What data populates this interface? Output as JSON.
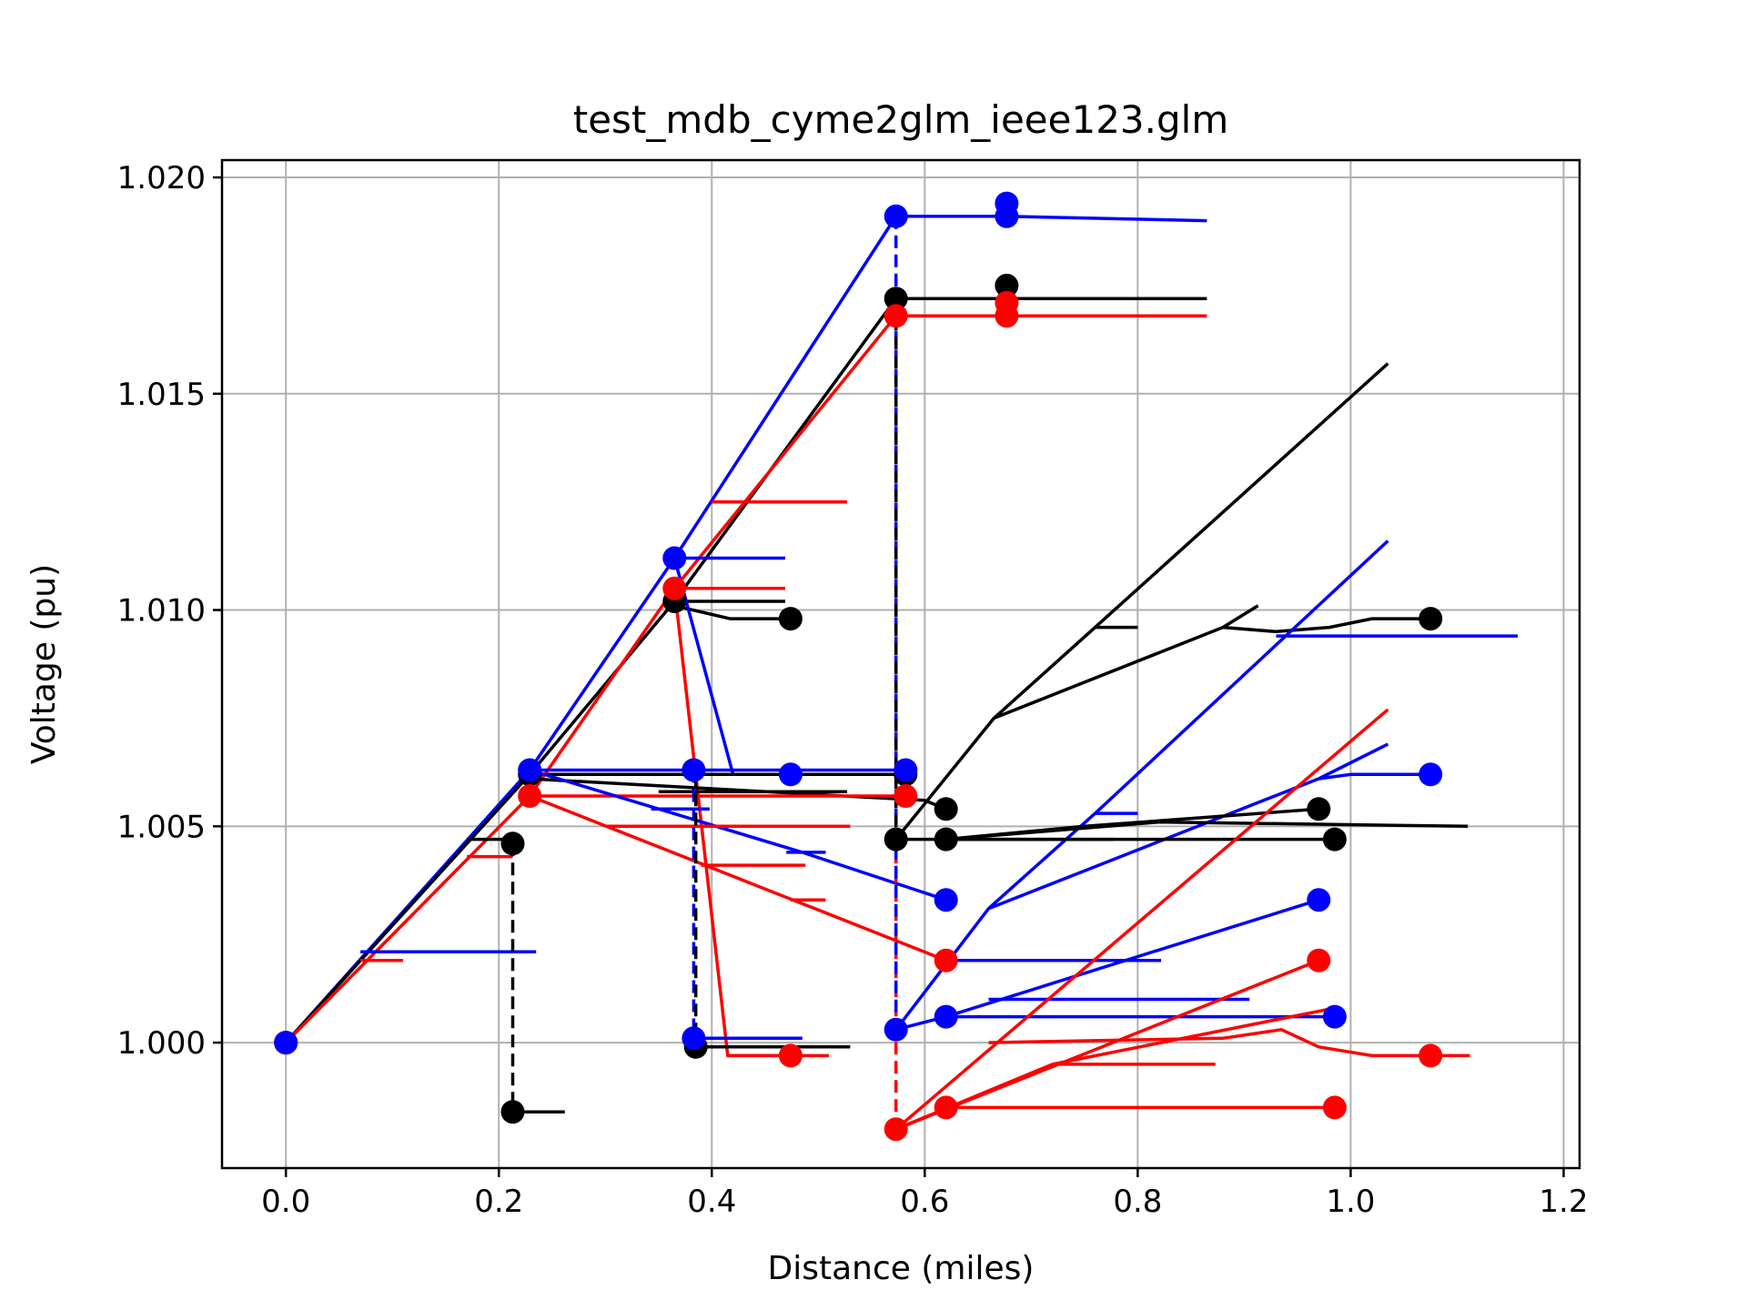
{
  "chart_data": {
    "type": "line",
    "title": "test_mdb_cyme2glm_ieee123.glm",
    "xlabel": "Distance (miles)",
    "ylabel": "Voltage (pu)",
    "xlim": [
      -0.06,
      1.215
    ],
    "ylim": [
      0.9971,
      1.0204
    ],
    "xticks": [
      "0.0",
      "0.2",
      "0.4",
      "0.6",
      "0.8",
      "1.0",
      "1.2"
    ],
    "xtick_values": [
      0.0,
      0.2,
      0.4,
      0.6,
      0.8,
      1.0,
      1.2
    ],
    "yticks": [
      "1.000",
      "1.005",
      "1.010",
      "1.015",
      "1.020"
    ],
    "ytick_values": [
      1.0,
      1.005,
      1.01,
      1.015,
      1.02
    ],
    "grid": true,
    "colors": {
      "phase_a": "#000000",
      "phase_b": "#0000ff",
      "phase_c": "#ff0000"
    },
    "series": [
      {
        "color": "#0000ff",
        "values": [
          [
            0.0,
            1.0
          ],
          [
            0.229,
            1.0063
          ],
          [
            0.365,
            1.0112
          ],
          [
            0.573,
            1.0191
          ]
        ]
      },
      {
        "color": "#000000",
        "values": [
          [
            0.0,
            1.0
          ],
          [
            0.229,
            1.0062
          ],
          [
            0.365,
            1.0102
          ],
          [
            0.573,
            1.0172
          ]
        ]
      },
      {
        "color": "#ff0000",
        "values": [
          [
            0.0,
            1.0
          ],
          [
            0.229,
            1.0057
          ],
          [
            0.365,
            1.0105
          ],
          [
            0.573,
            1.0168
          ]
        ]
      },
      {
        "color": "#0000ff",
        "values": [
          [
            0.573,
            1.0191
          ],
          [
            0.677,
            1.0191
          ],
          [
            0.865,
            1.019
          ]
        ]
      },
      {
        "color": "#000000",
        "values": [
          [
            0.573,
            1.0172
          ],
          [
            0.677,
            1.0172
          ],
          [
            0.865,
            1.0172
          ]
        ]
      },
      {
        "color": "#ff0000",
        "values": [
          [
            0.573,
            1.0168
          ],
          [
            0.677,
            1.0168
          ],
          [
            0.865,
            1.0168
          ]
        ]
      },
      {
        "color": "#ff0000",
        "values": [
          [
            0.4,
            1.0125
          ],
          [
            0.527,
            1.0125
          ]
        ]
      },
      {
        "color": "#0000ff",
        "values": [
          [
            0.365,
            1.0112
          ],
          [
            0.469,
            1.0112
          ]
        ]
      },
      {
        "color": "#000000",
        "values": [
          [
            0.365,
            1.0102
          ],
          [
            0.469,
            1.0102
          ]
        ]
      },
      {
        "color": "#ff0000",
        "values": [
          [
            0.365,
            1.0105
          ],
          [
            0.469,
            1.0105
          ]
        ]
      },
      {
        "color": "#000000",
        "values": [
          [
            0.365,
            1.0101
          ],
          [
            0.417,
            1.0098
          ],
          [
            0.474,
            1.0098
          ]
        ]
      },
      {
        "color": "#0000ff",
        "values": [
          [
            0.365,
            1.0112
          ],
          [
            0.42,
            1.0062
          ]
        ]
      },
      {
        "color": "#ff0000",
        "values": [
          [
            0.365,
            1.0105
          ],
          [
            0.415,
            0.9997
          ],
          [
            0.474,
            0.9997
          ]
        ]
      },
      {
        "color": "#ff0000",
        "values": [
          [
            0.415,
            0.9997
          ],
          [
            0.51,
            0.9997
          ]
        ]
      },
      {
        "color": "#0000ff",
        "values": [
          [
            0.229,
            1.0063
          ],
          [
            0.573,
            1.0063
          ],
          [
            0.582,
            1.0063
          ]
        ]
      },
      {
        "color": "#000000",
        "values": [
          [
            0.229,
            1.0062
          ],
          [
            0.582,
            1.0062
          ]
        ]
      },
      {
        "color": "#000000",
        "values": [
          [
            0.229,
            1.0061
          ],
          [
            0.6,
            1.0056
          ],
          [
            0.62,
            1.0054
          ]
        ]
      },
      {
        "color": "#ff0000",
        "values": [
          [
            0.229,
            1.0057
          ],
          [
            0.582,
            1.0057
          ]
        ]
      },
      {
        "color": "#000000",
        "values": [
          [
            0.35,
            1.0058
          ],
          [
            0.527,
            1.0058
          ]
        ]
      },
      {
        "color": "#0000ff",
        "values": [
          [
            0.229,
            1.0063
          ],
          [
            0.485,
            1.0044
          ],
          [
            0.62,
            1.0033
          ]
        ]
      },
      {
        "color": "#ff0000",
        "values": [
          [
            0.229,
            1.0057
          ],
          [
            0.62,
            1.0019
          ]
        ]
      },
      {
        "color": "#0000ff",
        "values": [
          [
            0.343,
            1.0054
          ],
          [
            0.398,
            1.0054
          ]
        ]
      },
      {
        "color": "#ff0000",
        "values": [
          [
            0.3,
            1.005
          ],
          [
            0.53,
            1.005
          ]
        ]
      },
      {
        "color": "#0000ff",
        "values": [
          [
            0.47,
            1.0044
          ],
          [
            0.507,
            1.0044
          ]
        ]
      },
      {
        "color": "#ff0000",
        "values": [
          [
            0.39,
            1.0041
          ],
          [
            0.488,
            1.0041
          ]
        ]
      },
      {
        "color": "#ff0000",
        "values": [
          [
            0.474,
            1.0033
          ],
          [
            0.507,
            1.0033
          ]
        ]
      },
      {
        "color": "#0000ff",
        "values": [
          [
            0.07,
            1.0021
          ],
          [
            0.235,
            1.0021
          ]
        ]
      },
      {
        "color": "#ff0000",
        "values": [
          [
            0.07,
            1.0019
          ],
          [
            0.11,
            1.0019
          ]
        ]
      },
      {
        "color": "#000000",
        "values": [
          [
            0.17,
            1.0047
          ],
          [
            0.213,
            1.0047
          ]
        ]
      },
      {
        "color": "#ff0000",
        "values": [
          [
            0.17,
            1.0043
          ],
          [
            0.213,
            1.0043
          ]
        ]
      },
      {
        "color": "#000000",
        "values": [
          [
            0.213,
            0.9984
          ],
          [
            0.262,
            0.9984
          ]
        ]
      },
      {
        "color": "#0000ff",
        "values": [
          [
            0.383,
            1.0001
          ],
          [
            0.485,
            1.0001
          ]
        ]
      },
      {
        "color": "#000000",
        "values": [
          [
            0.383,
            0.9999
          ],
          [
            0.53,
            0.9999
          ]
        ]
      },
      {
        "color": "#000000",
        "values": [
          [
            0.573,
            1.0047
          ],
          [
            0.665,
            1.0075
          ],
          [
            0.76,
            1.0096
          ],
          [
            1.035,
            1.0157
          ]
        ]
      },
      {
        "color": "#000000",
        "values": [
          [
            0.76,
            1.0096
          ],
          [
            0.8,
            1.0096
          ]
        ]
      },
      {
        "color": "#000000",
        "values": [
          [
            0.665,
            1.0075
          ],
          [
            0.88,
            1.0096
          ],
          [
            0.913,
            1.0101
          ]
        ]
      },
      {
        "color": "#000000",
        "values": [
          [
            0.88,
            1.0096
          ],
          [
            0.93,
            1.0095
          ],
          [
            0.98,
            1.0096
          ],
          [
            1.02,
            1.0098
          ],
          [
            1.075,
            1.0098
          ]
        ]
      },
      {
        "color": "#0000ff",
        "values": [
          [
            0.93,
            1.0094
          ],
          [
            1.157,
            1.0094
          ]
        ]
      },
      {
        "color": "#0000ff",
        "values": [
          [
            0.573,
            1.0003
          ],
          [
            0.66,
            1.0031
          ],
          [
            0.76,
            1.0053
          ],
          [
            1.035,
            1.0116
          ]
        ]
      },
      {
        "color": "#0000ff",
        "values": [
          [
            0.76,
            1.0053
          ],
          [
            0.8,
            1.0053
          ]
        ]
      },
      {
        "color": "#0000ff",
        "values": [
          [
            0.66,
            1.0031
          ],
          [
            0.97,
            1.0061
          ],
          [
            1.035,
            1.0069
          ]
        ]
      },
      {
        "color": "#0000ff",
        "values": [
          [
            0.97,
            1.0061
          ],
          [
            1.0,
            1.0062
          ],
          [
            1.075,
            1.0062
          ]
        ]
      },
      {
        "color": "#000000",
        "values": [
          [
            0.573,
            1.0047
          ],
          [
            0.62,
            1.0047
          ],
          [
            0.985,
            1.0047
          ]
        ]
      },
      {
        "color": "#000000",
        "values": [
          [
            0.62,
            1.0047
          ],
          [
            0.778,
            1.0047
          ]
        ]
      },
      {
        "color": "#000000",
        "values": [
          [
            0.62,
            1.0047
          ],
          [
            0.82,
            1.0051
          ],
          [
            1.11,
            1.005
          ]
        ]
      },
      {
        "color": "#000000",
        "values": [
          [
            0.62,
            1.0047
          ],
          [
            0.75,
            1.005
          ],
          [
            0.97,
            1.0054
          ]
        ]
      },
      {
        "color": "#0000ff",
        "values": [
          [
            0.573,
            1.0003
          ],
          [
            0.62,
            1.0006
          ],
          [
            0.97,
            1.0033
          ]
        ]
      },
      {
        "color": "#0000ff",
        "values": [
          [
            0.62,
            1.0019
          ],
          [
            0.822,
            1.0019
          ]
        ]
      },
      {
        "color": "#0000ff",
        "values": [
          [
            0.62,
            1.0006
          ],
          [
            0.985,
            1.0006
          ]
        ]
      },
      {
        "color": "#0000ff",
        "values": [
          [
            0.66,
            1.001
          ],
          [
            0.905,
            1.001
          ]
        ]
      },
      {
        "color": "#ff0000",
        "values": [
          [
            0.573,
            0.998
          ],
          [
            1.035,
            1.0077
          ]
        ]
      },
      {
        "color": "#ff0000",
        "values": [
          [
            0.573,
            0.998
          ],
          [
            0.97,
            1.0019
          ]
        ]
      },
      {
        "color": "#ff0000",
        "values": [
          [
            0.573,
            0.998
          ],
          [
            0.72,
            0.9995
          ],
          [
            0.985,
            1.0008
          ]
        ]
      },
      {
        "color": "#ff0000",
        "values": [
          [
            0.62,
            0.9985
          ],
          [
            0.985,
            0.9985
          ]
        ]
      },
      {
        "color": "#ff0000",
        "values": [
          [
            0.66,
            1.0
          ],
          [
            0.88,
            1.0001
          ],
          [
            0.935,
            1.0003
          ],
          [
            0.97,
            0.9999
          ],
          [
            1.02,
            0.9997
          ],
          [
            1.112,
            0.9997
          ]
        ]
      },
      {
        "color": "#ff0000",
        "values": [
          [
            0.72,
            0.9995
          ],
          [
            0.873,
            0.9995
          ]
        ]
      },
      {
        "color": "#ff0000",
        "values": [
          [
            0.573,
            1.0057
          ],
          [
            0.582,
            1.0057
          ]
        ]
      },
      {
        "color": "#000000",
        "dashed": true,
        "values": [
          [
            0.213,
            1.0046
          ],
          [
            0.213,
            0.9984
          ]
        ]
      },
      {
        "color": "#0000ff",
        "dashed": true,
        "values": [
          [
            0.383,
            1.0063
          ],
          [
            0.383,
            1.0001
          ]
        ]
      },
      {
        "color": "#000000",
        "dashed": true,
        "values": [
          [
            0.385,
            1.0062
          ],
          [
            0.385,
            0.9999
          ]
        ]
      },
      {
        "color": "#ff0000",
        "dashed": true,
        "values": [
          [
            0.573,
            1.0168
          ],
          [
            0.573,
            0.998
          ]
        ]
      },
      {
        "color": "#0000ff",
        "dashed": true,
        "values": [
          [
            0.573,
            1.0191
          ],
          [
            0.573,
            1.0003
          ]
        ]
      },
      {
        "color": "#000000",
        "dashed": true,
        "values": [
          [
            0.573,
            1.0172
          ],
          [
            0.573,
            1.0047
          ]
        ]
      }
    ],
    "points": [
      {
        "color": "#000000",
        "x": 0.0,
        "y": 1.0
      },
      {
        "color": "#ff0000",
        "x": 0.0,
        "y": 1.0
      },
      {
        "color": "#0000ff",
        "x": 0.0,
        "y": 1.0
      },
      {
        "color": "#000000",
        "x": 0.213,
        "y": 1.0046
      },
      {
        "color": "#000000",
        "x": 0.213,
        "y": 0.9984
      },
      {
        "color": "#000000",
        "x": 0.229,
        "y": 1.0062
      },
      {
        "color": "#ff0000",
        "x": 0.229,
        "y": 1.0057
      },
      {
        "color": "#0000ff",
        "x": 0.229,
        "y": 1.0063
      },
      {
        "color": "#000000",
        "x": 0.365,
        "y": 1.0102
      },
      {
        "color": "#ff0000",
        "x": 0.365,
        "y": 1.0105
      },
      {
        "color": "#0000ff",
        "x": 0.365,
        "y": 1.0112
      },
      {
        "color": "#000000",
        "x": 0.474,
        "y": 1.0098
      },
      {
        "color": "#000000",
        "x": 0.385,
        "y": 0.9999
      },
      {
        "color": "#0000ff",
        "x": 0.383,
        "y": 1.0001
      },
      {
        "color": "#0000ff",
        "x": 0.383,
        "y": 1.0063
      },
      {
        "color": "#0000ff",
        "x": 0.474,
        "y": 1.0062
      },
      {
        "color": "#ff0000",
        "x": 0.474,
        "y": 0.9997
      },
      {
        "color": "#000000",
        "x": 0.573,
        "y": 1.0172
      },
      {
        "color": "#ff0000",
        "x": 0.573,
        "y": 1.0168
      },
      {
        "color": "#0000ff",
        "x": 0.573,
        "y": 1.0191
      },
      {
        "color": "#000000",
        "x": 0.677,
        "y": 1.0175
      },
      {
        "color": "#ff0000",
        "x": 0.677,
        "y": 1.0171
      },
      {
        "color": "#ff0000",
        "x": 0.677,
        "y": 1.0168
      },
      {
        "color": "#0000ff",
        "x": 0.677,
        "y": 1.0194
      },
      {
        "color": "#0000ff",
        "x": 0.677,
        "y": 1.0191
      },
      {
        "color": "#000000",
        "x": 0.582,
        "y": 1.0062
      },
      {
        "color": "#ff0000",
        "x": 0.582,
        "y": 1.0057
      },
      {
        "color": "#0000ff",
        "x": 0.582,
        "y": 1.0063
      },
      {
        "color": "#000000",
        "x": 0.573,
        "y": 1.0047
      },
      {
        "color": "#0000ff",
        "x": 0.573,
        "y": 1.0003
      },
      {
        "color": "#ff0000",
        "x": 0.573,
        "y": 0.998
      },
      {
        "color": "#000000",
        "x": 0.62,
        "y": 1.0054
      },
      {
        "color": "#000000",
        "x": 0.62,
        "y": 1.0047
      },
      {
        "color": "#0000ff",
        "x": 0.62,
        "y": 1.0033
      },
      {
        "color": "#0000ff",
        "x": 0.62,
        "y": 1.0006
      },
      {
        "color": "#ff0000",
        "x": 0.62,
        "y": 1.0019
      },
      {
        "color": "#ff0000",
        "x": 0.62,
        "y": 0.9985
      },
      {
        "color": "#000000",
        "x": 0.97,
        "y": 1.0054
      },
      {
        "color": "#000000",
        "x": 0.985,
        "y": 1.0047
      },
      {
        "color": "#0000ff",
        "x": 0.97,
        "y": 1.0033
      },
      {
        "color": "#0000ff",
        "x": 0.985,
        "y": 1.0006
      },
      {
        "color": "#ff0000",
        "x": 0.97,
        "y": 1.0019
      },
      {
        "color": "#ff0000",
        "x": 0.985,
        "y": 0.9985
      },
      {
        "color": "#000000",
        "x": 1.075,
        "y": 1.0098
      },
      {
        "color": "#0000ff",
        "x": 1.075,
        "y": 1.0062
      },
      {
        "color": "#ff0000",
        "x": 1.075,
        "y": 0.9997
      }
    ]
  }
}
